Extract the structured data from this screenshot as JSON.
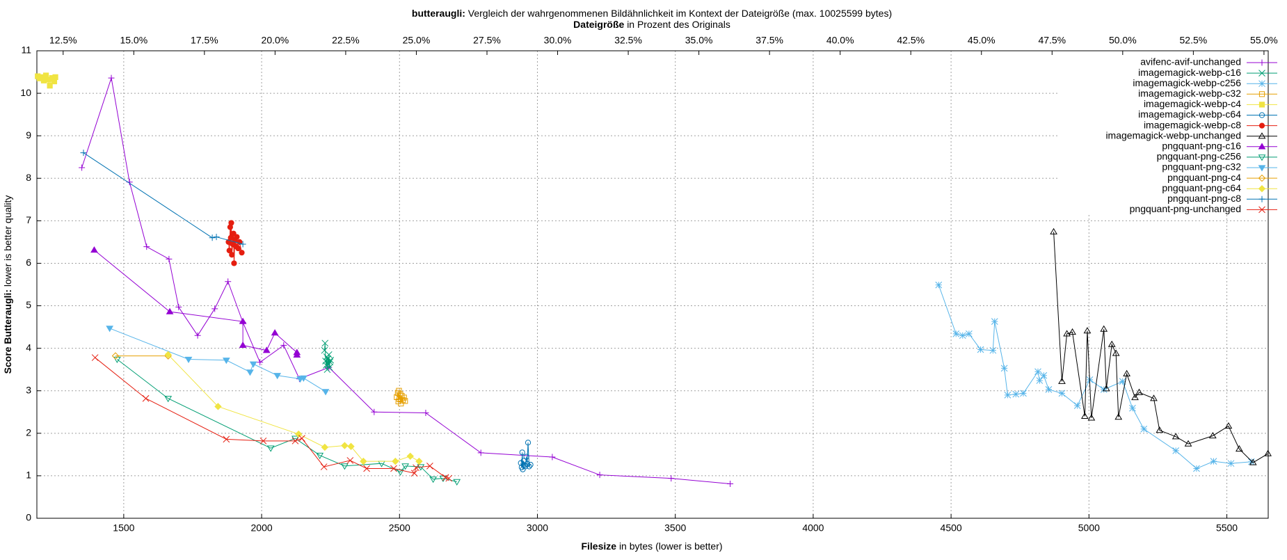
{
  "chart_data": {
    "type": "line",
    "title_bold": "butteraugli:",
    "title": "Vergleich der wahrgenommenen Bildähnlichkeit im Kontext der Dateigröße (max. 10025599 bytes)",
    "x2label_bold": "Dateigröße",
    "x2label": "in Prozent des Originals",
    "xlabel_bold": "Filesize",
    "xlabel": "in bytes (lower is better)",
    "ylabel_bold": "Score Butteraugli:",
    "ylabel": "lower is better quality",
    "xlim": [
      1185,
      5650
    ],
    "xticks": [
      1500,
      2000,
      2500,
      3000,
      3500,
      4000,
      4500,
      5000,
      5500
    ],
    "x2lim": [
      11.57,
      55.15
    ],
    "x2ticks": [
      {
        "value": 12.5,
        "label": "12.5%"
      },
      {
        "value": 15,
        "label": "15.0%"
      },
      {
        "value": 17.5,
        "label": "17.5%"
      },
      {
        "value": 20,
        "label": "20.0%"
      },
      {
        "value": 22.5,
        "label": "22.5%"
      },
      {
        "value": 25,
        "label": "25.0%"
      },
      {
        "value": 27.5,
        "label": "27.5%"
      },
      {
        "value": 30,
        "label": "30.0%"
      },
      {
        "value": 32.5,
        "label": "32.5%"
      },
      {
        "value": 35,
        "label": "35.0%"
      },
      {
        "value": 37.5,
        "label": "37.5%"
      },
      {
        "value": 40,
        "label": "40.0%"
      },
      {
        "value": 42.5,
        "label": "42.5%"
      },
      {
        "value": 45,
        "label": "45.0%"
      },
      {
        "value": 47.5,
        "label": "47.5%"
      },
      {
        "value": 50,
        "label": "50.0%"
      },
      {
        "value": 52.5,
        "label": "52.5%"
      },
      {
        "value": 55,
        "label": "55.0%"
      }
    ],
    "ylim": [
      0,
      11
    ],
    "yticks": [
      0,
      1,
      2,
      3,
      4,
      5,
      6,
      7,
      8,
      9,
      10,
      11
    ],
    "grid": true,
    "legend": "top-right",
    "series": [
      {
        "name": "avifenc-avif-unchanged",
        "color": "#9400d3",
        "marker": "plus",
        "x": [
          1348,
          1455,
          1521,
          1583,
          1664,
          1699,
          1768,
          1830,
          1878,
          1932,
          1994,
          2080,
          2137,
          2244,
          2408,
          2595,
          2795,
          3054,
          3226,
          3485,
          3699
        ],
        "values": [
          8.25,
          10.36,
          7.91,
          6.39,
          6.1,
          4.97,
          4.3,
          4.93,
          5.57,
          4.61,
          3.67,
          4.07,
          3.28,
          3.55,
          2.5,
          2.48,
          1.54,
          1.44,
          1.02,
          0.94,
          0.81
        ]
      },
      {
        "name": "imagemagick-webp-c16",
        "color": "#009e73",
        "marker": "x",
        "x": [
          2228,
          2230,
          2232,
          2234,
          2236,
          2238,
          2240,
          2242,
          2244,
          2246,
          2248,
          2250
        ],
        "values": [
          3.95,
          4.12,
          3.7,
          3.6,
          3.8,
          3.5,
          3.75,
          3.62,
          3.85,
          3.55,
          3.68,
          3.72
        ]
      },
      {
        "name": "imagemagick-webp-c256",
        "color": "#56b4e9",
        "marker": "star",
        "x": [
          4455,
          4518,
          4542,
          4565,
          4607,
          4652,
          4658,
          4693,
          4705,
          4735,
          4762,
          4815,
          4821,
          4836,
          4854,
          4902,
          4958,
          5003,
          5054,
          5122,
          5158,
          5199,
          5315,
          5390,
          5452,
          5515,
          5589
        ],
        "values": [
          5.49,
          4.34,
          4.3,
          4.34,
          3.97,
          3.95,
          4.63,
          3.53,
          2.9,
          2.92,
          2.94,
          3.45,
          3.24,
          3.36,
          3.03,
          2.94,
          2.65,
          3.26,
          3.03,
          3.22,
          2.59,
          2.1,
          1.59,
          1.17,
          1.34,
          1.29,
          1.33
        ]
      },
      {
        "name": "imagemagick-webp-c32",
        "color": "#e69f00",
        "marker": "square",
        "x": [
          2490,
          2494,
          2496,
          2498,
          2500,
          2503,
          2505,
          2508,
          2512,
          2516,
          2520
        ],
        "values": [
          2.85,
          2.95,
          2.75,
          3.0,
          2.8,
          2.92,
          2.7,
          2.88,
          2.78,
          2.84,
          2.76
        ]
      },
      {
        "name": "imagemagick-webp-c4",
        "color": "#f0e442",
        "marker": "square-filled",
        "x": [
          1188,
          1195,
          1202,
          1210,
          1218,
          1225,
          1232,
          1240,
          1248,
          1252
        ],
        "values": [
          10.4,
          10.35,
          10.38,
          10.3,
          10.42,
          10.32,
          10.18,
          10.36,
          10.28,
          10.38
        ]
      },
      {
        "name": "imagemagick-webp-c64",
        "color": "#0072b2",
        "marker": "circle",
        "x": [
          2940,
          2943,
          2945,
          2947,
          2950,
          2953,
          2956,
          2960,
          2963,
          2966,
          2970,
          2975
        ],
        "values": [
          1.3,
          1.2,
          1.55,
          1.15,
          1.35,
          1.25,
          1.22,
          1.45,
          1.28,
          1.78,
          1.22,
          1.26
        ]
      },
      {
        "name": "imagemagick-webp-c8",
        "color": "#e51e10",
        "marker": "dot",
        "x": [
          1880,
          1883,
          1886,
          1888,
          1890,
          1892,
          1895,
          1898,
          1900,
          1903,
          1906,
          1910,
          1915,
          1920,
          1928
        ],
        "values": [
          6.5,
          6.3,
          6.85,
          6.6,
          6.95,
          6.2,
          6.45,
          6.7,
          6.0,
          6.55,
          6.4,
          6.62,
          6.35,
          6.5,
          6.25
        ]
      },
      {
        "name": "imagemagick-webp-unchanged",
        "color": "#000000",
        "marker": "triangle",
        "x": [
          4872,
          4902,
          4920,
          4940,
          4985,
          4994,
          5009,
          5054,
          5063,
          5083,
          5098,
          5107,
          5137,
          5167,
          5182,
          5235,
          5256,
          5315,
          5360,
          5449,
          5506,
          5545,
          5595,
          5649
        ],
        "values": [
          6.74,
          3.22,
          4.34,
          4.38,
          2.4,
          4.41,
          2.36,
          4.45,
          3.05,
          4.09,
          3.88,
          2.38,
          3.4,
          2.84,
          2.96,
          2.82,
          2.07,
          1.92,
          1.75,
          1.94,
          2.17,
          1.63,
          1.31,
          1.52
        ]
      },
      {
        "name": "pngquant-png-c16",
        "color": "#9400d3",
        "marker": "triangle-filled",
        "x": [
          1393,
          1667,
          1932,
          1932,
          2018,
          2048,
          2128,
          2128
        ],
        "values": [
          6.31,
          4.86,
          4.63,
          4.07,
          3.95,
          4.36,
          3.9,
          3.84
        ]
      },
      {
        "name": "pngquant-png-c256",
        "color": "#009e73",
        "marker": "triangle-down",
        "x": [
          1476,
          1661,
          2033,
          2122,
          2211,
          2301,
          2435,
          2503,
          2521,
          2577,
          2622,
          2658,
          2708
        ],
        "values": [
          3.74,
          2.82,
          1.65,
          1.88,
          1.48,
          1.23,
          1.29,
          1.09,
          1.23,
          1.21,
          0.92,
          0.94,
          0.86
        ]
      },
      {
        "name": "pngquant-png-c32",
        "color": "#56b4e9",
        "marker": "triangle-down-filled",
        "x": [
          1449,
          1735,
          1872,
          1958,
          1970,
          2057,
          2140,
          2152,
          2232
        ],
        "values": [
          4.47,
          3.74,
          3.72,
          3.44,
          3.63,
          3.36,
          3.28,
          3.3,
          2.98
        ]
      },
      {
        "name": "pngquant-png-c4",
        "color": "#e69f00",
        "marker": "diamond",
        "x": [
          1470,
          1661
        ],
        "values": [
          3.82,
          3.82
        ]
      },
      {
        "name": "pngquant-png-c64",
        "color": "#f0e442",
        "marker": "diamond-filled",
        "x": [
          1661,
          1842,
          2134,
          2229,
          2301,
          2324,
          2369,
          2485,
          2539,
          2571
        ],
        "values": [
          3.85,
          2.63,
          1.98,
          1.67,
          1.71,
          1.69,
          1.34,
          1.34,
          1.46,
          1.34
        ]
      },
      {
        "name": "pngquant-png-c8",
        "color": "#0072b2",
        "marker": "plus",
        "x": [
          1354,
          1821,
          1836,
          1932
        ],
        "values": [
          8.6,
          6.6,
          6.62,
          6.45
        ]
      },
      {
        "name": "pngquant-png-unchanged",
        "color": "#e51e10",
        "marker": "x",
        "x": [
          1396,
          1580,
          1872,
          2006,
          2122,
          2146,
          2226,
          2321,
          2381,
          2479,
          2554,
          2560,
          2610,
          2667,
          2679
        ],
        "values": [
          3.78,
          2.82,
          1.86,
          1.82,
          1.82,
          1.88,
          1.21,
          1.36,
          1.17,
          1.17,
          1.06,
          1.19,
          1.23,
          0.96,
          0.94
        ]
      }
    ]
  }
}
